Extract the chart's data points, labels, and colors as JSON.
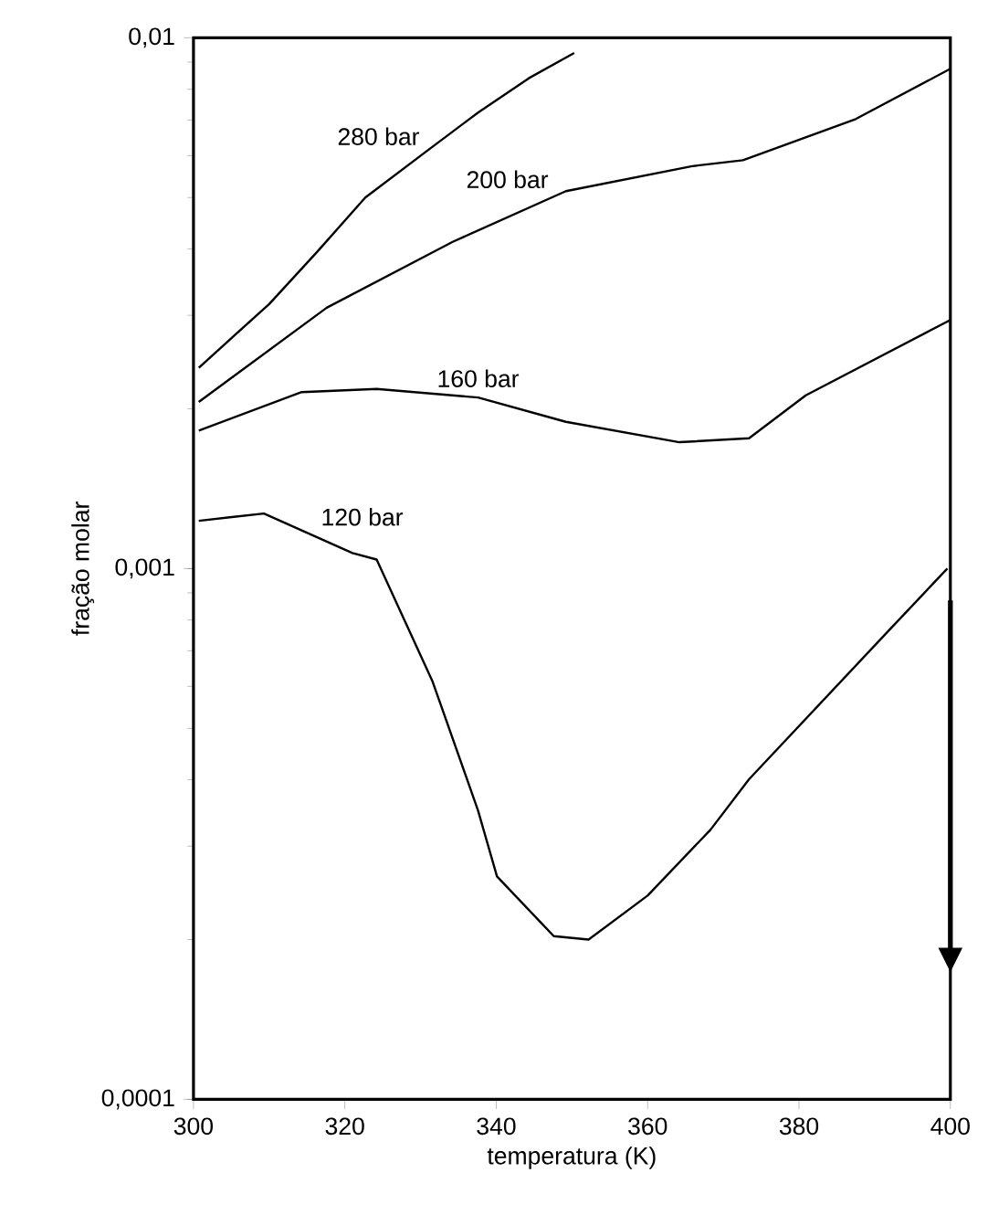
{
  "chart_data": {
    "type": "line",
    "xlabel": "temperatura (K)",
    "ylabel": "fração molar",
    "log": "y",
    "xlim": [
      300,
      400
    ],
    "ylim": [
      0.0001,
      0.01
    ],
    "xticks": [
      300,
      320,
      340,
      360,
      380,
      400
    ],
    "yticks": [
      {
        "value": 0.0001,
        "label": "0,0001"
      },
      {
        "value": 0.001,
        "label": "0,001"
      },
      {
        "value": 0.01,
        "label": "0,01"
      }
    ],
    "line_style": "solid",
    "legend": false,
    "series": [
      {
        "name": "280 bar",
        "color": "#000000",
        "x": [
          300.7,
          310,
          316.4,
          322.7,
          330.9,
          337.6,
          344.3,
          350.3
        ],
        "values": [
          0.00239,
          0.00315,
          0.00396,
          0.005,
          0.00613,
          0.00723,
          0.00839,
          0.00936
        ]
      },
      {
        "name": "200 bar",
        "color": "#000000",
        "x": [
          300.7,
          317.6,
          334.3,
          349.2,
          365.9,
          372.6,
          387.5,
          400
        ],
        "values": [
          0.00206,
          0.0031,
          0.00413,
          0.00514,
          0.00573,
          0.00588,
          0.00703,
          0.00874
        ]
      },
      {
        "name": "160 bar",
        "color": "#000000",
        "x": [
          300.7,
          314.3,
          324.2,
          337.6,
          349.2,
          364.2,
          373.4,
          380.9,
          400
        ],
        "values": [
          0.00182,
          0.00215,
          0.00218,
          0.0021,
          0.00189,
          0.00173,
          0.00176,
          0.00212,
          0.00294
        ]
      },
      {
        "name": "120 bar",
        "color": "#000000",
        "x": [
          300.7,
          309.3,
          321,
          324.2,
          331.6,
          337.6,
          340.1,
          347.6,
          352.2,
          360,
          368.3,
          373.4,
          391.7,
          399.6
        ],
        "values": [
          0.00123,
          0.00127,
          0.00107,
          0.00104,
          0.000612,
          0.00035,
          0.000263,
          0.000203,
          0.0002,
          0.000242,
          0.000322,
          0.000401,
          0.00076,
          0.001
        ]
      }
    ]
  }
}
